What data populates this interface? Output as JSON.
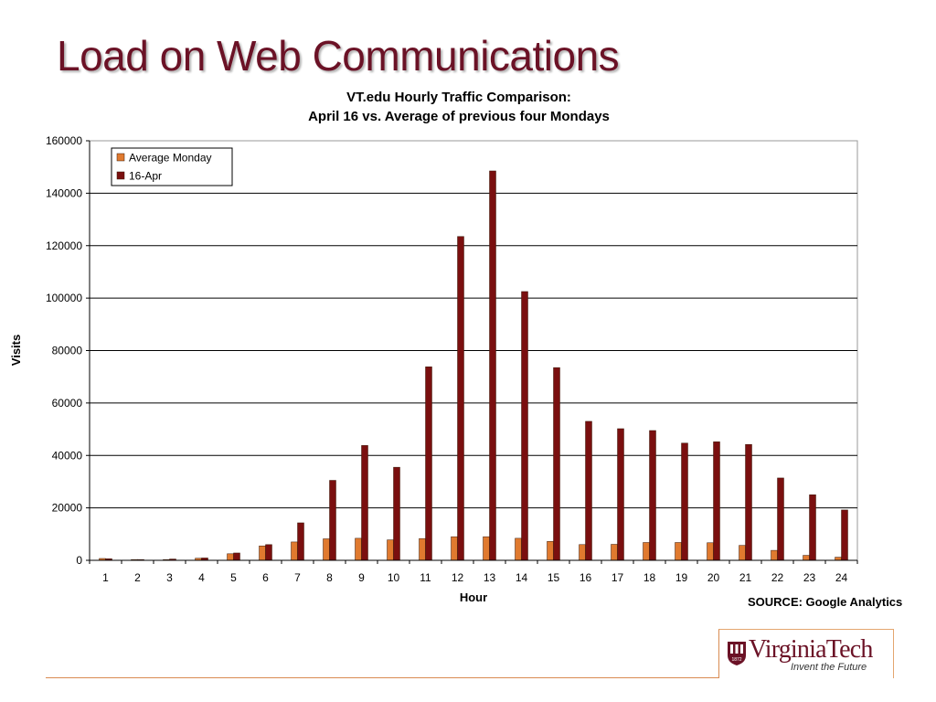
{
  "slide": {
    "title": "Load on Web Communications",
    "source": "SOURCE: Google Analytics"
  },
  "logo": {
    "name": "VirginiaTech",
    "tagline": "Invent the Future",
    "shield_year": "1872"
  },
  "colors": {
    "title": "#6b1226",
    "average_monday": "#e07a2f",
    "apr16": "#7a0f0f",
    "accent_line": "#d98b52"
  },
  "chart_data": {
    "type": "bar",
    "title": "VT.edu Hourly Traffic Comparison:",
    "subtitle": "April 16 vs. Average of previous four Mondays",
    "xlabel": "Hour",
    "ylabel": "Visits",
    "ylim": [
      0,
      160000
    ],
    "yticks": [
      0,
      20000,
      40000,
      60000,
      80000,
      100000,
      120000,
      140000,
      160000
    ],
    "grid": true,
    "legend_position": "top-left",
    "categories": [
      "1",
      "2",
      "3",
      "4",
      "5",
      "6",
      "7",
      "8",
      "9",
      "10",
      "11",
      "12",
      "13",
      "14",
      "15",
      "16",
      "17",
      "18",
      "19",
      "20",
      "21",
      "22",
      "23",
      "24"
    ],
    "series": [
      {
        "name": "Average Monday",
        "color": "#e07a2f",
        "values": [
          700,
          300,
          300,
          800,
          2500,
          5500,
          7000,
          8200,
          8400,
          7800,
          8300,
          9000,
          9000,
          8400,
          7200,
          6000,
          6100,
          6800,
          6800,
          6700,
          5700,
          3800,
          1900,
          1200
        ]
      },
      {
        "name": "16-Apr",
        "color": "#7a0f0f",
        "values": [
          600,
          300,
          500,
          900,
          2800,
          6000,
          14300,
          30500,
          43800,
          35500,
          73800,
          123500,
          148500,
          102500,
          73500,
          53000,
          50200,
          49500,
          44700,
          45200,
          44200,
          31400,
          25000,
          19200
        ]
      }
    ]
  }
}
